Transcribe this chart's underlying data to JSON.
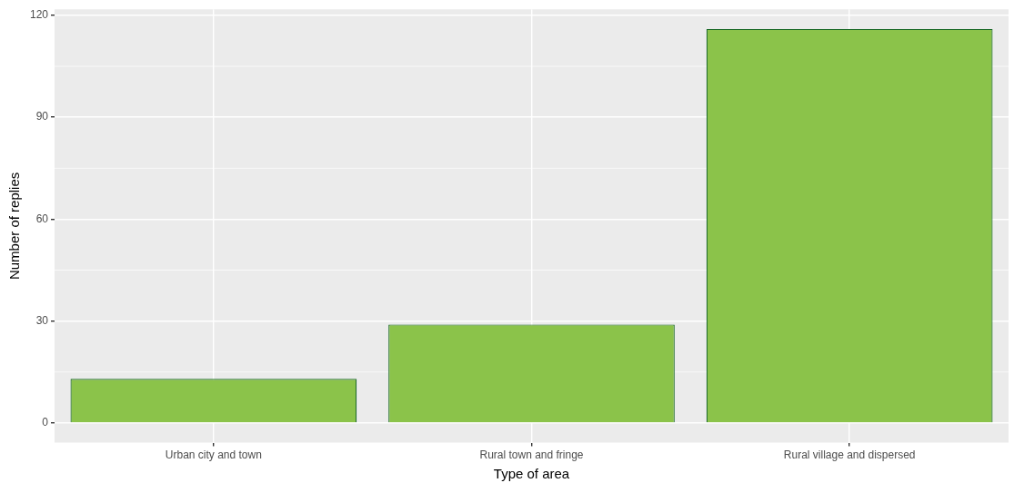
{
  "chart_data": {
    "type": "bar",
    "xlabel": "Type of area",
    "ylabel": "Number of replies",
    "categories": [
      "Urban city and town",
      "Rural town and fringe",
      "Rural village and dispersed"
    ],
    "values": [
      13,
      29,
      116
    ],
    "color": "#8bc34a",
    "ylim": [
      -5.8,
      121.8
    ],
    "yticks": [
      0,
      30,
      60,
      90,
      120
    ],
    "grid": true
  }
}
